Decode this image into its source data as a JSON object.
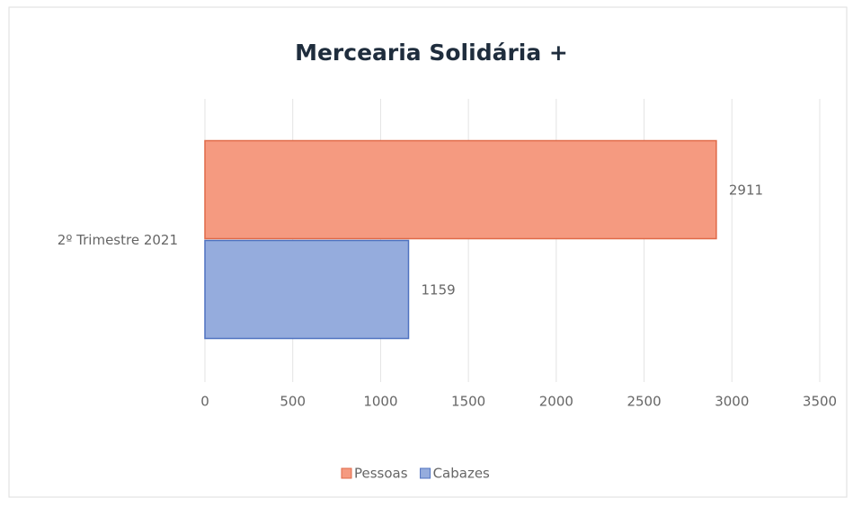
{
  "chart_data": {
    "type": "bar",
    "orientation": "horizontal",
    "title": "Mercearia Solidária +",
    "categories": [
      "2º Trimestre 2021"
    ],
    "series": [
      {
        "name": "Pessoas",
        "color": "#f59a80",
        "stroke": "#e06a48",
        "values": [
          2911
        ]
      },
      {
        "name": "Cabazes",
        "color": "#95acdd",
        "stroke": "#4f72c0",
        "values": [
          1159
        ]
      }
    ],
    "xlim": [
      0,
      3500
    ],
    "xticks": [
      0,
      500,
      1000,
      1500,
      2000,
      2500,
      3000,
      3500
    ],
    "grid": true,
    "legend": "bottom"
  }
}
